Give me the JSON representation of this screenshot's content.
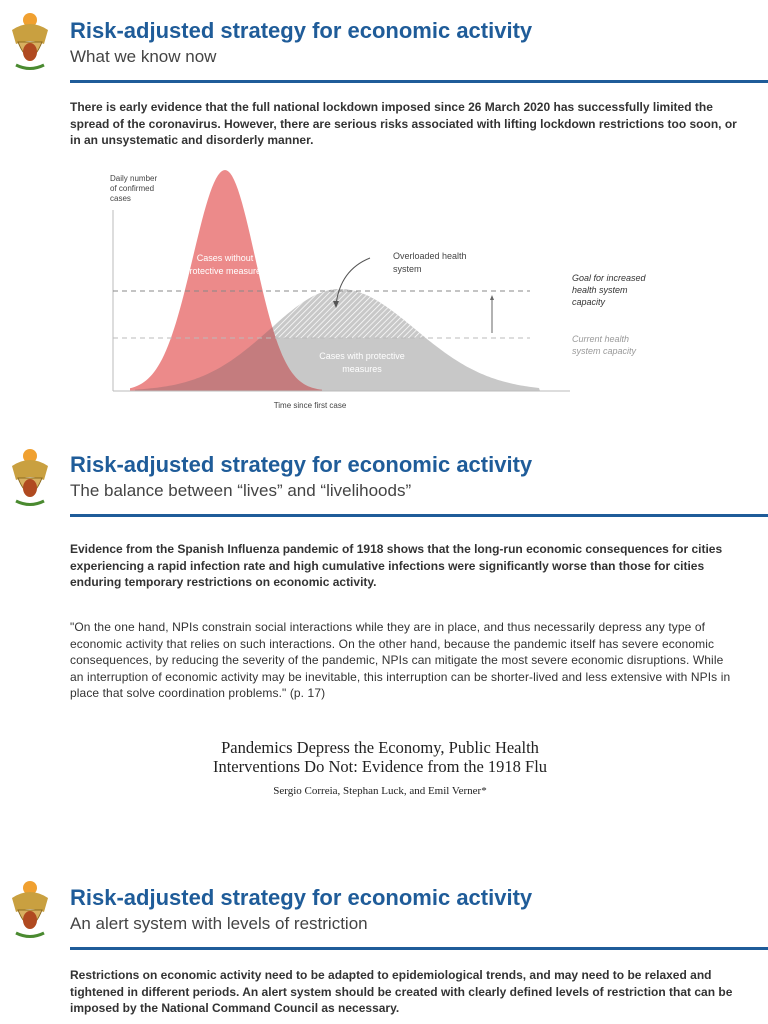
{
  "slides": [
    {
      "title": "Risk-adjusted strategy for economic activity",
      "subtitle": "What we know now",
      "body": "There is early evidence that the full national lockdown imposed since 26 March 2020 has successfully limited the spread of the coronavirus. However, there are serious risks associated with lifting lockdown restrictions too soon, or in an unsystematic and disorderly manner."
    },
    {
      "title": "Risk-adjusted strategy for economic activity",
      "subtitle": "The balance between “lives” and “livelihoods”",
      "body": "Evidence from the Spanish Influenza pandemic of 1918 shows that the long-run economic consequences for cities experiencing a rapid infection rate and high cumulative infections were significantly worse than those for cities enduring temporary restrictions on economic activity.",
      "quote": "\"On the one hand, NPIs constrain social interactions while they are in place, and thus necessarily depress any type of economic activity that relies on such interactions. On the other hand, because the pandemic itself has severe economic consequences, by reducing the severity of the pandemic, NPIs can mitigate the most severe economic disruptions. While an interruption of economic activity may be inevitable, this interruption can be shorter-lived and less extensive with NPIs in place that solve coordination problems.\" (p. 17)",
      "paper": {
        "title_line1": "Pandemics Depress the Economy, Public Health",
        "title_line2": "Interventions Do Not: Evidence from the 1918 Flu",
        "authors": "Sergio Correia, Stephan Luck, and Emil Verner*"
      }
    },
    {
      "title": "Risk-adjusted strategy for economic activity",
      "subtitle": "An alert system with levels of restriction",
      "body": "Restrictions on economic activity need to be adapted to epidemiological trends, and may need to be relaxed and tightened in different periods. An alert system should be created with clearly defined levels of restriction that can be imposed by the National Command Council as necessary."
    }
  ],
  "diagram": {
    "y_label": [
      "Daily number",
      "of confirmed",
      "cases"
    ],
    "x_label": "Time since first case",
    "red_label": [
      "Cases without",
      "protective measures"
    ],
    "gray_label": [
      "Cases with protective",
      "measures"
    ],
    "overload_label": [
      "Overloaded health",
      "system"
    ],
    "goal_label": [
      "Goal for increased",
      "health system",
      "capacity"
    ],
    "current_label": [
      "Current health",
      "system capacity"
    ],
    "colors": {
      "red": "#ec8a8a",
      "gray": "#c8c8c8",
      "overlap": "#c47c7e"
    }
  },
  "colors": {
    "accent": "#1f5c99"
  }
}
